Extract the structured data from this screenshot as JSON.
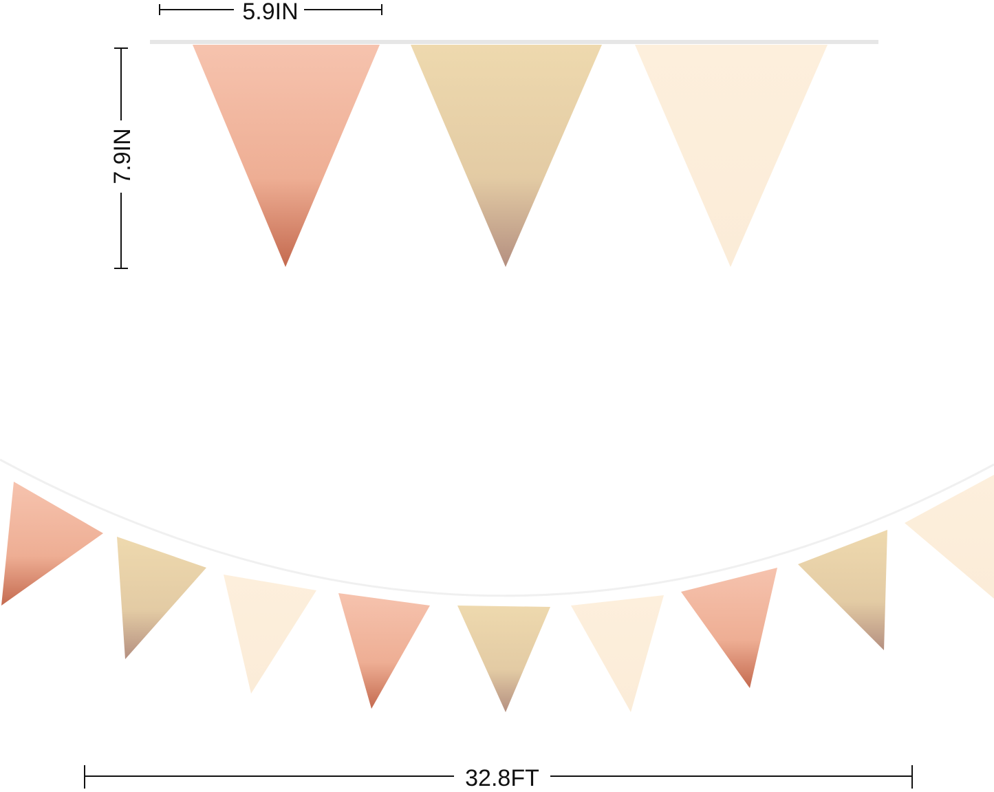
{
  "dimensions": {
    "flag_width": "5.9IN",
    "flag_height": "7.9IN",
    "total_length": "32.8FT"
  },
  "colors": {
    "rose_gold": "#f2b9a2",
    "rose_gold_dark": "#c9745a",
    "gold": "#e8d3ab",
    "gold_dark": "#b99a86",
    "cream": "#fdefdc",
    "string": "#e6e6e6",
    "line": "#111111"
  },
  "top_flags": [
    "rose_gold",
    "gold",
    "cream"
  ],
  "bottom_flags": [
    "rose_gold",
    "gold",
    "cream",
    "rose_gold",
    "gold",
    "cream",
    "rose_gold",
    "gold",
    "cream"
  ]
}
